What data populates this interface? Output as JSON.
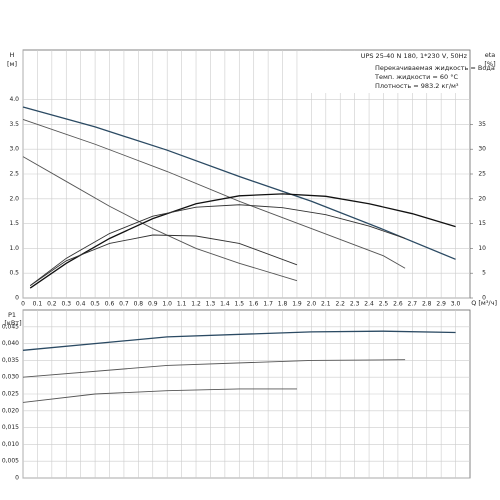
{
  "chart_data": [
    {
      "type": "line",
      "annotations": [
        "UPS 25-40 N 180, 1*230 V, 50Hz",
        "Перекачиваемая жидкость = Вода",
        "Темп. жидкости = 60 °C",
        "Плотность = 983.2 кг/м³"
      ],
      "y_label": "H",
      "y_unit": "[м]",
      "y2_label": "eta",
      "y2_unit": "[%]",
      "x_label": "Q [м³/ч]",
      "xlim": [
        0,
        3.1
      ],
      "xticks": [
        0,
        0.1,
        0.2,
        0.3,
        0.4,
        0.5,
        0.6,
        0.7,
        0.8,
        0.9,
        {
          "value": 1,
          "label": "1.0"
        },
        1.1,
        1.2,
        1.3,
        1.4,
        1.5,
        1.6,
        1.7,
        1.8,
        1.9,
        {
          "value": 2,
          "label": "2.0"
        },
        2.1,
        2.2,
        2.3,
        2.4,
        2.5,
        2.6,
        2.7,
        2.8,
        2.9,
        {
          "value": 3,
          "label": "3.0"
        }
      ],
      "ylim": [
        0,
        5
      ],
      "yticks": [
        0,
        0.5,
        {
          "value": 1,
          "label": "1.0"
        },
        1.5,
        {
          "value": 2,
          "label": "2.0"
        },
        2.5,
        {
          "value": 3,
          "label": "3.0"
        },
        3.5,
        {
          "value": 4,
          "label": "4.0"
        }
      ],
      "y2lim": [
        0,
        50
      ],
      "y2ticks": [
        0,
        5,
        10,
        15,
        20,
        25,
        30,
        35
      ],
      "grid": true,
      "series": [
        {
          "color": "#2b4a63",
          "width": 1.3,
          "x": [
            0,
            0.5,
            1.0,
            1.5,
            2.0,
            2.5,
            3.0
          ],
          "values": [
            3.85,
            3.45,
            2.98,
            2.45,
            1.95,
            1.38,
            0.78
          ]
        },
        {
          "color": "#555555",
          "width": 0.9,
          "x": [
            0,
            0.5,
            1.0,
            1.5,
            2.0,
            2.5,
            2.65
          ],
          "values": [
            3.6,
            3.1,
            2.55,
            1.95,
            1.4,
            0.85,
            0.6
          ]
        },
        {
          "color": "#555555",
          "width": 0.9,
          "x": [
            0,
            0.3,
            0.6,
            0.9,
            1.2,
            1.5,
            1.9
          ],
          "values": [
            2.85,
            2.35,
            1.85,
            1.4,
            1.0,
            0.7,
            0.35
          ]
        },
        {
          "color": "#111111",
          "width": 1.3,
          "axis": "y2",
          "x": [
            0.05,
            0.3,
            0.6,
            0.9,
            1.2,
            1.5,
            1.8,
            2.1,
            2.4,
            2.7,
            3.0
          ],
          "values": [
            2,
            7,
            12,
            16,
            19,
            20.6,
            21,
            20.5,
            19,
            17,
            14.4
          ]
        },
        {
          "color": "#333333",
          "width": 0.9,
          "axis": "y2",
          "x": [
            0.05,
            0.3,
            0.6,
            0.9,
            1.2,
            1.5,
            1.8,
            2.1,
            2.4,
            2.65
          ],
          "values": [
            2.5,
            8,
            13,
            16.5,
            18.3,
            18.8,
            18.2,
            16.8,
            14.5,
            12
          ]
        },
        {
          "color": "#333333",
          "width": 0.9,
          "axis": "y2",
          "x": [
            0.05,
            0.3,
            0.6,
            0.9,
            1.2,
            1.5,
            1.9
          ],
          "values": [
            2.5,
            7.5,
            11,
            12.7,
            12.5,
            11,
            6.7
          ]
        }
      ]
    },
    {
      "type": "line",
      "y_label": "P1",
      "y_unit": "[кВт]",
      "xlim": [
        0,
        3.1
      ],
      "xticks": [
        0,
        0.1,
        0.2,
        0.3,
        0.4,
        0.5,
        0.6,
        0.7,
        0.8,
        0.9,
        1,
        1.1,
        1.2,
        1.3,
        1.4,
        1.5,
        1.6,
        1.7,
        1.8,
        1.9,
        2,
        2.1,
        2.2,
        2.3,
        2.4,
        2.5,
        2.6,
        2.7,
        2.8,
        2.9,
        3
      ],
      "ylim": [
        0,
        0.05
      ],
      "yticks": [
        0,
        {
          "value": 0.005,
          "label": "0,005"
        },
        {
          "value": 0.01,
          "label": "0,010"
        },
        {
          "value": 0.015,
          "label": "0,015"
        },
        {
          "value": 0.02,
          "label": "0,020"
        },
        {
          "value": 0.025,
          "label": "0,025"
        },
        {
          "value": 0.03,
          "label": "0,030"
        },
        {
          "value": 0.035,
          "label": "0,035"
        },
        {
          "value": 0.04,
          "label": "0,040"
        },
        {
          "value": 0.045,
          "label": "0,045"
        }
      ],
      "grid": true,
      "series": [
        {
          "color": "#2b4a63",
          "width": 1.3,
          "x": [
            0,
            1,
            2,
            2.5,
            3.0
          ],
          "values": [
            0.038,
            0.042,
            0.0435,
            0.0437,
            0.0433
          ]
        },
        {
          "color": "#555555",
          "width": 0.9,
          "x": [
            0,
            1,
            2,
            2.65
          ],
          "values": [
            0.03,
            0.0335,
            0.035,
            0.0352
          ]
        },
        {
          "color": "#555555",
          "width": 0.9,
          "x": [
            0,
            0.5,
            1,
            1.5,
            1.9
          ],
          "values": [
            0.0225,
            0.025,
            0.026,
            0.0265,
            0.0265
          ]
        }
      ]
    }
  ]
}
